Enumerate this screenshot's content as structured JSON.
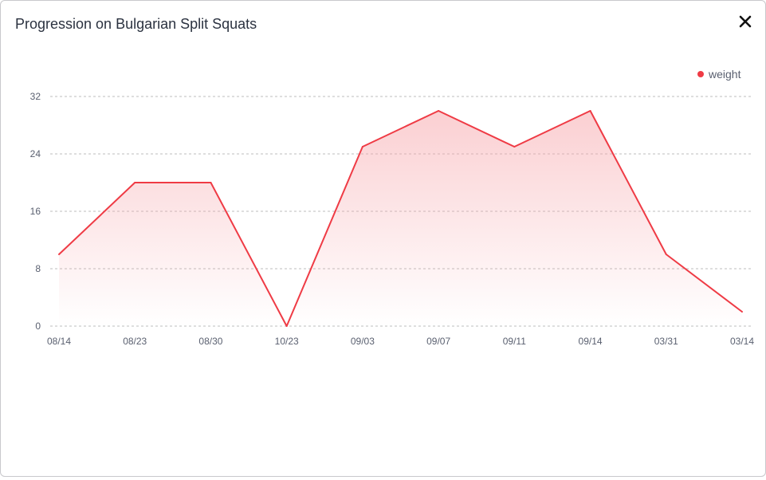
{
  "modal": {
    "title": "Progression on Bulgarian Split Squats",
    "close_icon": "close-icon"
  },
  "colors": {
    "line": "#ef3b45",
    "fill": "#f7a8ad",
    "grid": "#bcbcbc",
    "tick_text": "#5a6070"
  },
  "chart_data": {
    "type": "area",
    "title": "",
    "xlabel": "",
    "ylabel": "",
    "categories": [
      "08/14",
      "08/23",
      "08/30",
      "10/23",
      "09/03",
      "09/07",
      "09/11",
      "09/14",
      "03/31",
      "03/14"
    ],
    "series": [
      {
        "name": "weight",
        "values": [
          10,
          20,
          20,
          0,
          25,
          30,
          25,
          30,
          10,
          2
        ]
      }
    ],
    "yticks": [
      0,
      8,
      16,
      24,
      32
    ],
    "ylim": [
      0,
      32
    ],
    "grid": true,
    "legend": "top-right"
  }
}
